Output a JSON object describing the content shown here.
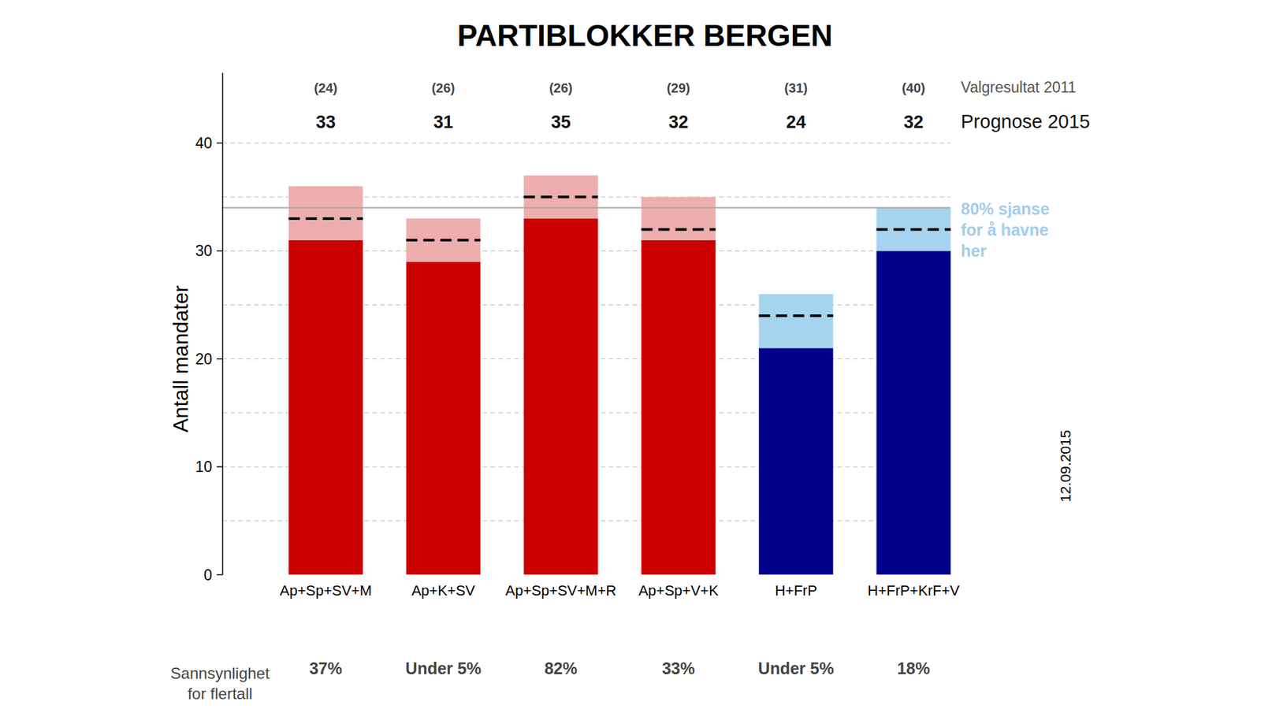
{
  "chart_data": {
    "type": "bar",
    "title": "PARTIBLOKKER BERGEN",
    "ylabel": "Antall mandater",
    "categories": [
      "Ap+Sp+SV+M",
      "Ap+K+SV",
      "Ap+Sp+SV+M+R",
      "Ap+Sp+V+K",
      "H+FrP",
      "H+FrP+KrF+V"
    ],
    "colors": [
      "#cc0000",
      "#cc0000",
      "#cc0000",
      "#cc0000",
      "#00008b",
      "#00008b"
    ],
    "interval_colors": [
      "#edaeae",
      "#edaeae",
      "#edaeae",
      "#edaeae",
      "#a6d4ee",
      "#a6d4ee"
    ],
    "interval": {
      "low": [
        31,
        29,
        33,
        31,
        21,
        30
      ],
      "high": [
        36,
        33,
        37,
        35,
        26,
        34
      ]
    },
    "forecast": {
      "label": "Prognose 2015",
      "values": [
        33,
        31,
        35,
        32,
        24,
        32
      ]
    },
    "result_2011": {
      "label": "Valgresultat 2011",
      "values": [
        24,
        26,
        26,
        29,
        31,
        40
      ],
      "value_labels": [
        "(24)",
        "(26)",
        "(26)",
        "(29)",
        "(31)",
        "(40)"
      ]
    },
    "majority_line": 34,
    "interval_note": [
      "80% sjanse",
      "for å havne",
      "her"
    ],
    "probability": {
      "label": [
        "Sannsynlighet",
        "for flertall"
      ],
      "values": [
        37,
        5,
        82,
        33,
        5,
        18
      ],
      "value_labels": [
        "37%",
        "Under 5%",
        "82%",
        "33%",
        "Under 5%",
        "18%"
      ]
    },
    "date": "12.09.2015",
    "ylim": [
      0,
      46.5
    ],
    "yticks": [
      0,
      10,
      20,
      30,
      40
    ],
    "grid": true
  }
}
